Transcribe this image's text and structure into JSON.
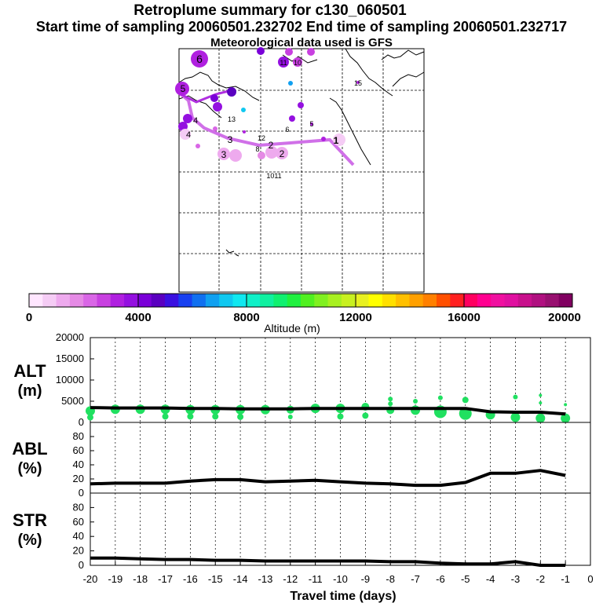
{
  "header": {
    "title": "Retroplume summary for c130_060501",
    "sampling_line": "Start time of sampling 20060501.232702     End time of sampling 20060501.232717",
    "met_line": "Meteorological data used is GFS"
  },
  "colorbar": {
    "ticks": [
      "0",
      "4000",
      "8000",
      "12000",
      "16000",
      "20000"
    ],
    "label": "Altitude (m)",
    "colors": [
      "#ffe6ff",
      "#f5ccf5",
      "#eeaaee",
      "#e58ae5",
      "#d966e6",
      "#c840e0",
      "#b020e0",
      "#9410e0",
      "#7a00d8",
      "#5a00c0",
      "#3a10e0",
      "#1840f0",
      "#1070f0",
      "#10a0f0",
      "#10c8f0",
      "#10e8f0",
      "#10f0c8",
      "#10f0a0",
      "#10f070",
      "#20f040",
      "#50f020",
      "#80f020",
      "#a8f020",
      "#c8f020",
      "#e8f020",
      "#ffff00",
      "#ffe000",
      "#ffc000",
      "#ffa000",
      "#ff8000",
      "#ff5000",
      "#ff2020",
      "#ff0060",
      "#ff0090",
      "#f010a0",
      "#e010a0",
      "#c8108c",
      "#b01080",
      "#981070",
      "#800060"
    ]
  },
  "map": {
    "labels": [
      {
        "t": "6"
      },
      {
        "t": "5"
      },
      {
        "t": "1"
      },
      {
        "t": "2"
      },
      {
        "t": "3"
      },
      {
        "t": "4"
      },
      {
        "t": "3"
      },
      {
        "t": "2"
      },
      {
        "t": "4"
      },
      {
        "t": "10"
      },
      {
        "t": "11"
      },
      {
        "t": "12"
      },
      {
        "t": "13"
      },
      {
        "t": "1011"
      },
      {
        "t": "15"
      },
      {
        "t": "6"
      },
      {
        "t": "5"
      },
      {
        "t": "8"
      }
    ]
  },
  "chart_data": [
    {
      "type": "line",
      "name": "ALT",
      "ylabel": "ALT\n(m)",
      "ylabel_line1": "ALT",
      "ylabel_line2": "(m)",
      "ylim": [
        0,
        20000
      ],
      "yticks": [
        "20000",
        "15000",
        "10000",
        "5000",
        "0"
      ],
      "ytick_values": [
        20000,
        15000,
        10000,
        5000,
        0
      ],
      "x": [
        -20,
        -19,
        -18,
        -17,
        -16,
        -15,
        -14,
        -13,
        -12,
        -11,
        -10,
        -9,
        -8,
        -7,
        -6,
        -5,
        -4,
        -3,
        -2,
        -1
      ],
      "values": [
        3500,
        3400,
        3400,
        3400,
        3300,
        3300,
        3200,
        3200,
        3200,
        3300,
        3300,
        3300,
        3300,
        3300,
        3300,
        3300,
        2500,
        2400,
        2400,
        2000
      ],
      "bubbles": [
        {
          "x": -20,
          "y": 2700,
          "s": 6
        },
        {
          "x": -20,
          "y": 1200,
          "s": 4
        },
        {
          "x": -19,
          "y": 3100,
          "s": 6
        },
        {
          "x": -18,
          "y": 3100,
          "s": 6
        },
        {
          "x": -17,
          "y": 3100,
          "s": 6
        },
        {
          "x": -17,
          "y": 1400,
          "s": 4
        },
        {
          "x": -16,
          "y": 3000,
          "s": 6
        },
        {
          "x": -16,
          "y": 1400,
          "s": 4
        },
        {
          "x": -15,
          "y": 3000,
          "s": 6
        },
        {
          "x": -15,
          "y": 1400,
          "s": 4
        },
        {
          "x": -14,
          "y": 3000,
          "s": 6
        },
        {
          "x": -14,
          "y": 1300,
          "s": 4
        },
        {
          "x": -13,
          "y": 3000,
          "s": 6
        },
        {
          "x": -12,
          "y": 3000,
          "s": 5
        },
        {
          "x": -12,
          "y": 1300,
          "s": 3
        },
        {
          "x": -11,
          "y": 3300,
          "s": 6
        },
        {
          "x": -10,
          "y": 3300,
          "s": 6
        },
        {
          "x": -10,
          "y": 1400,
          "s": 4
        },
        {
          "x": -9,
          "y": 3700,
          "s": 5
        },
        {
          "x": -9,
          "y": 1600,
          "s": 4
        },
        {
          "x": -8,
          "y": 2900,
          "s": 5
        },
        {
          "x": -8,
          "y": 4400,
          "s": 3
        },
        {
          "x": -8,
          "y": 5500,
          "s": 3
        },
        {
          "x": -7,
          "y": 2900,
          "s": 6
        },
        {
          "x": -7,
          "y": 5000,
          "s": 3
        },
        {
          "x": -6,
          "y": 2500,
          "s": 8
        },
        {
          "x": -6,
          "y": 5800,
          "s": 3
        },
        {
          "x": -5,
          "y": 2100,
          "s": 8
        },
        {
          "x": -5,
          "y": 5300,
          "s": 4
        },
        {
          "x": -4,
          "y": 1800,
          "s": 6
        },
        {
          "x": -3,
          "y": 1200,
          "s": 6
        },
        {
          "x": -3,
          "y": 6000,
          "s": 3
        },
        {
          "x": -2,
          "y": 1000,
          "s": 6
        },
        {
          "x": -2,
          "y": 4600,
          "s": 2
        },
        {
          "x": -2,
          "y": 6400,
          "s": 2
        },
        {
          "x": -1,
          "y": 1000,
          "s": 6
        },
        {
          "x": -1,
          "y": 4200,
          "s": 2
        }
      ]
    },
    {
      "type": "line",
      "name": "ABL",
      "ylabel_line1": "ABL",
      "ylabel_line2": "(%)",
      "ylim": [
        0,
        100
      ],
      "yticks": [
        "80",
        "60",
        "40",
        "20",
        "0"
      ],
      "ytick_values": [
        80,
        60,
        40,
        20,
        0
      ],
      "x": [
        -20,
        -19,
        -18,
        -17,
        -16,
        -15,
        -14,
        -13,
        -12,
        -11,
        -10,
        -9,
        -8,
        -7,
        -6,
        -5,
        -4,
        -3,
        -2,
        -1
      ],
      "values": [
        13,
        14,
        14,
        14,
        17,
        19,
        19,
        16,
        17,
        18,
        16,
        14,
        13,
        11,
        11,
        15,
        28,
        28,
        32,
        25
      ]
    },
    {
      "type": "line",
      "name": "STR",
      "ylabel_line1": "STR",
      "ylabel_line2": "(%)",
      "ylim": [
        0,
        100
      ],
      "yticks": [
        "80",
        "60",
        "40",
        "20",
        "0"
      ],
      "ytick_values": [
        80,
        60,
        40,
        20,
        0
      ],
      "xlabel": "Travel time (days)",
      "xticks": [
        "-20",
        "-19",
        "-18",
        "-17",
        "-16",
        "-15",
        "-14",
        "-13",
        "-12",
        "-11",
        "-10",
        "-9",
        "-8",
        "-7",
        "-6",
        "-5",
        "-4",
        "-3",
        "-2",
        "-1",
        "0"
      ],
      "xtick_values": [
        -20,
        -19,
        -18,
        -17,
        -16,
        -15,
        -14,
        -13,
        -12,
        -11,
        -10,
        -9,
        -8,
        -7,
        -6,
        -5,
        -4,
        -3,
        -2,
        -1,
        0
      ],
      "x": [
        -20,
        -19,
        -18,
        -17,
        -16,
        -15,
        -14,
        -13,
        -12,
        -11,
        -10,
        -9,
        -8,
        -7,
        -6,
        -5,
        -4,
        -3,
        -2,
        -1
      ],
      "values": [
        10,
        10,
        9,
        8,
        8,
        7,
        7,
        6,
        6,
        6,
        6,
        6,
        5,
        5,
        3,
        2,
        2,
        5,
        0,
        0
      ]
    }
  ]
}
